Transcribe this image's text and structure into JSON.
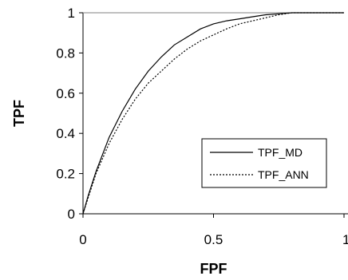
{
  "chart_data": {
    "type": "line",
    "title": "",
    "xlabel": "FPF",
    "ylabel": "TPF",
    "xlim": [
      0,
      1
    ],
    "ylim": [
      0,
      1
    ],
    "x_ticks": [
      0,
      0.5,
      1
    ],
    "x_tick_labels": [
      "0",
      "0.5",
      "1"
    ],
    "y_ticks": [
      0,
      0.2,
      0.4,
      0.6,
      0.8,
      1
    ],
    "y_tick_labels": [
      "0",
      "0.2",
      "0.4",
      "0.6",
      "0.8",
      "1"
    ],
    "grid": false,
    "legend_position": "bottom-right",
    "series": [
      {
        "name": "TPF_MD",
        "style": "solid",
        "color": "#000000",
        "x": [
          0,
          0.02,
          0.05,
          0.1,
          0.15,
          0.2,
          0.25,
          0.3,
          0.35,
          0.4,
          0.45,
          0.5,
          0.55,
          0.6,
          0.65,
          0.7,
          0.75,
          0.8,
          0.85,
          0.9,
          1.0
        ],
        "y": [
          0,
          0.09,
          0.21,
          0.38,
          0.51,
          0.62,
          0.71,
          0.78,
          0.84,
          0.88,
          0.92,
          0.945,
          0.96,
          0.97,
          0.98,
          0.99,
          0.995,
          1.0,
          1.0,
          1.0,
          1.0
        ]
      },
      {
        "name": "TPF_ANN",
        "style": "dotted",
        "color": "#000000",
        "x": [
          0,
          0.02,
          0.05,
          0.1,
          0.15,
          0.2,
          0.25,
          0.3,
          0.35,
          0.4,
          0.45,
          0.5,
          0.55,
          0.6,
          0.65,
          0.7,
          0.75,
          0.8,
          0.85,
          0.9,
          1.0
        ],
        "y": [
          0,
          0.08,
          0.2,
          0.35,
          0.47,
          0.57,
          0.65,
          0.71,
          0.77,
          0.82,
          0.86,
          0.89,
          0.92,
          0.945,
          0.96,
          0.975,
          0.99,
          1.0,
          1.0,
          1.0,
          1.0
        ]
      }
    ]
  }
}
